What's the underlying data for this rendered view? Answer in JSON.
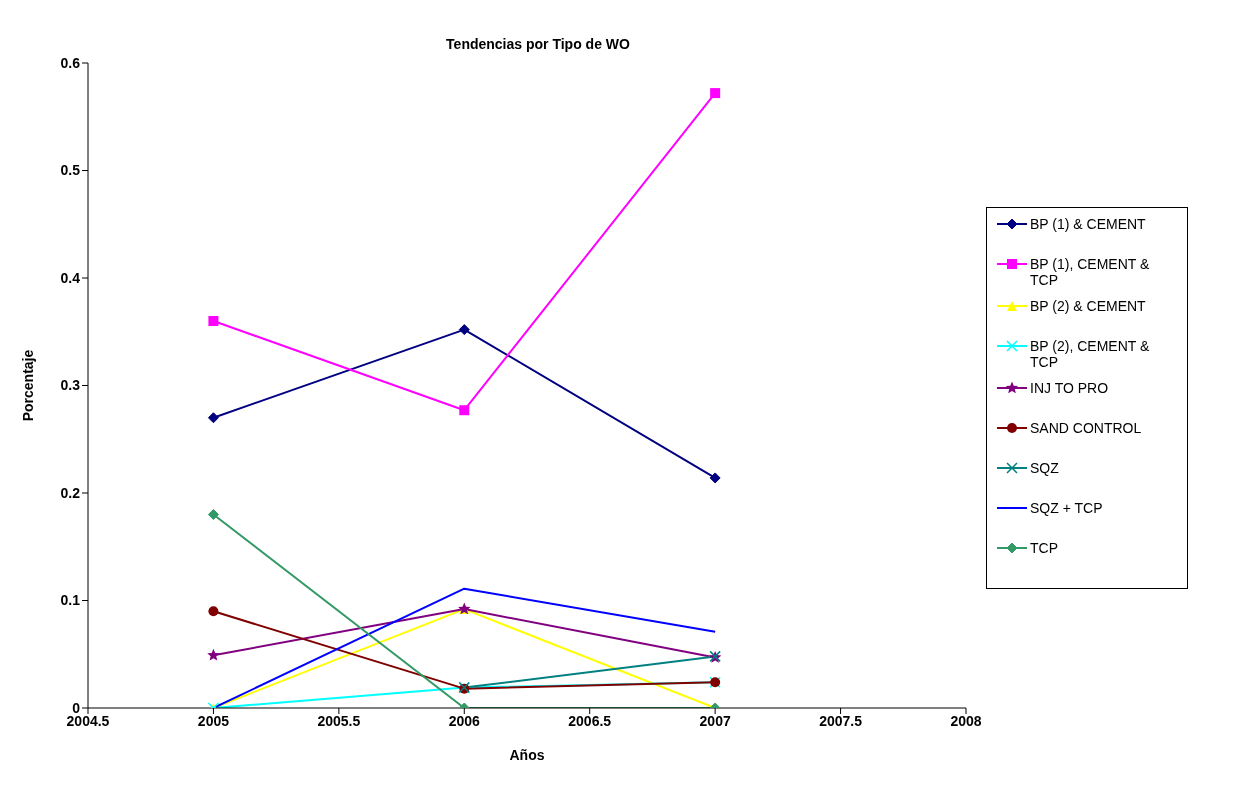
{
  "chart_data": {
    "type": "line",
    "title": "Tendencias por Tipo de WO",
    "xlabel": "Años",
    "ylabel": "Porcentaje",
    "x": [
      2005,
      2006,
      2007
    ],
    "xlim": [
      2004.5,
      2008
    ],
    "xticks": [
      2004.5,
      2005,
      2005.5,
      2006,
      2006.5,
      2007,
      2007.5,
      2008
    ],
    "ylim": [
      0,
      0.6
    ],
    "yticks": [
      0,
      0.1,
      0.2,
      0.3,
      0.4,
      0.5,
      0.6
    ],
    "legend": "right",
    "series": [
      {
        "name": "BP (1) & CEMENT",
        "color": "#000080",
        "marker": "diamond",
        "values": [
          0.27,
          0.352,
          0.214
        ]
      },
      {
        "name": "BP (1), CEMENT & TCP",
        "color": "#ff00ff",
        "marker": "square",
        "values": [
          0.36,
          0.277,
          0.572
        ]
      },
      {
        "name": "BP (2) & CEMENT",
        "color": "#ffff00",
        "marker": "triangle",
        "values": [
          0,
          0.092,
          0
        ]
      },
      {
        "name": "BP (2), CEMENT & TCP",
        "color": "#00ffff",
        "marker": "cross",
        "values": [
          0,
          0.019,
          0.024
        ]
      },
      {
        "name": "INJ TO PRO",
        "color": "#800080",
        "marker": "star",
        "values": [
          0.049,
          0.092,
          0.047
        ]
      },
      {
        "name": "SAND CONTROL",
        "color": "#800000",
        "marker": "circle",
        "values": [
          0.09,
          0.018,
          0.024
        ]
      },
      {
        "name": "SQZ",
        "color": "#008080",
        "marker": "cross",
        "values": [
          null,
          0.019,
          0.048
        ]
      },
      {
        "name": "SQZ + TCP",
        "color": "#0000ff",
        "marker": "none",
        "values": [
          0,
          0.111,
          0.071
        ]
      },
      {
        "name": "TCP",
        "color": "#339966",
        "marker": "diamond",
        "values": [
          0.18,
          0,
          0
        ]
      }
    ]
  }
}
